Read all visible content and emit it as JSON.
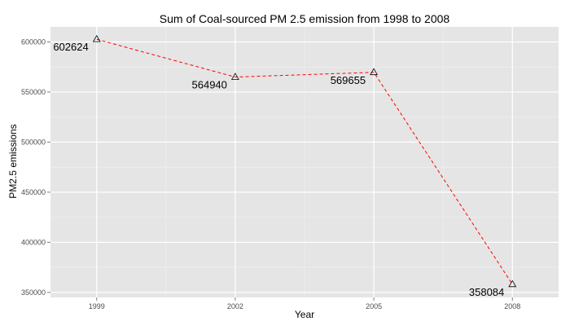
{
  "chart_data": {
    "type": "line",
    "title": "Sum of Coal-sourced PM 2.5 emission from 1998 to 2008",
    "xlabel": "Year",
    "ylabel": "PM2.5 emissions",
    "x": [
      1999,
      2002,
      2005,
      2008
    ],
    "x_tick_labels": [
      "1999",
      "2002",
      "2005",
      "2008"
    ],
    "xlim": [
      1998,
      2009
    ],
    "y_ticks": [
      350000,
      400000,
      450000,
      500000,
      550000,
      600000
    ],
    "y_tick_labels": [
      "350000",
      "400000",
      "450000",
      "500000",
      "550000",
      "600000"
    ],
    "ylim": [
      345000,
      615000
    ],
    "series": [
      {
        "values": [
          602624,
          564940,
          569655,
          358084
        ],
        "labels": [
          "602624",
          "564940",
          "569655",
          "358084"
        ],
        "line_style": "dashed",
        "line_color": "#ff0000",
        "marker": "triangle-open"
      }
    ],
    "grid": true,
    "panel_background": "#e5e5e5",
    "grid_color": "#ffffff"
  }
}
